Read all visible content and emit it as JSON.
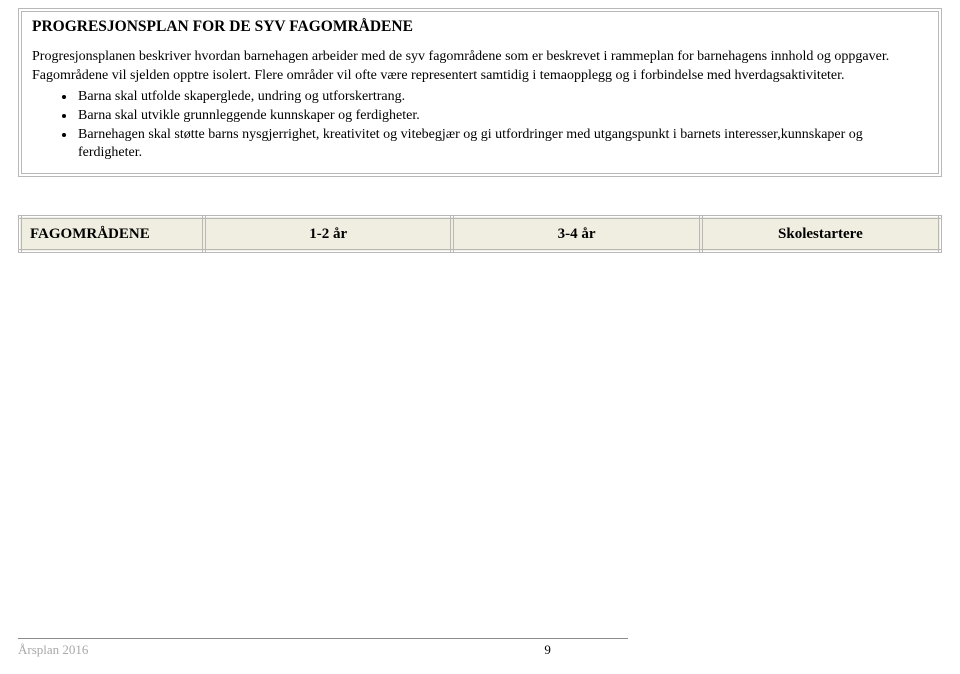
{
  "box": {
    "title": "PROGRESJONSPLAN FOR DE SYV FAGOMRÅDENE",
    "p1": "Progresjonsplanen beskriver hvordan barnehagen arbeider med de syv fagområdene som er beskrevet i rammeplan for barnehagens innhold og oppgaver. Fagområdene vil sjelden opptre isolert. Flere områder vil ofte være representert samtidig i temaopplegg og i forbindelse med hverdagsaktiviteter.",
    "bullets": [
      "Barna skal utfolde skaperglede, undring og utforskertrang.",
      "Barna skal utvikle grunnleggende kunnskaper og ferdigheter.",
      "Barnehagen skal støtte barns nysgjerrighet, kreativitet og vitebegjær og gi utfordringer med utgangspunkt i barnets interesser,kunnskaper og ferdigheter."
    ]
  },
  "table": {
    "col0": "FAGOMRÅDENE",
    "col1": "1-2 år",
    "col2": "3-4 år",
    "col3": "Skolestartere",
    "col0_width": "20%",
    "col1_width": "27%",
    "col2_width": "27%",
    "col3_width": "26%",
    "bg": "#f0eee0",
    "border_color": "#b8b8b8"
  },
  "footer": {
    "title": "Årsplan 2016",
    "page": "9"
  }
}
